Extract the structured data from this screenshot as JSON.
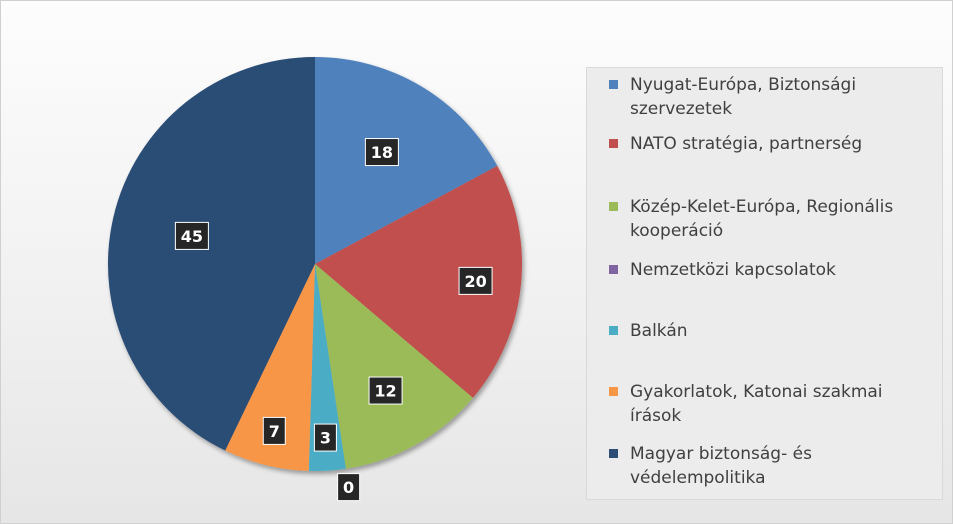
{
  "chart_data": {
    "type": "pie",
    "categories": [
      "Nyugat-Európa, Biztonsági szervezetek",
      "NATO stratégia, partnerség",
      "Közép-Kelet-Európa, Regionális kooperáció",
      "Nemzetközi kapcsolatok",
      "Balkán",
      "Gyakorlatok, Katonai szakmai írások",
      "Magyar biztonság- és védelempolitika"
    ],
    "values": [
      18,
      20,
      12,
      0,
      3,
      7,
      45
    ],
    "colors": [
      "#4f81bd",
      "#c0504d",
      "#9bbb59",
      "#8064a2",
      "#4bacc6",
      "#f79646",
      "#2c4d75"
    ],
    "data_labels": [
      "18",
      "20",
      "12",
      "0",
      "3",
      "7",
      "45"
    ],
    "legend_position": "right"
  }
}
